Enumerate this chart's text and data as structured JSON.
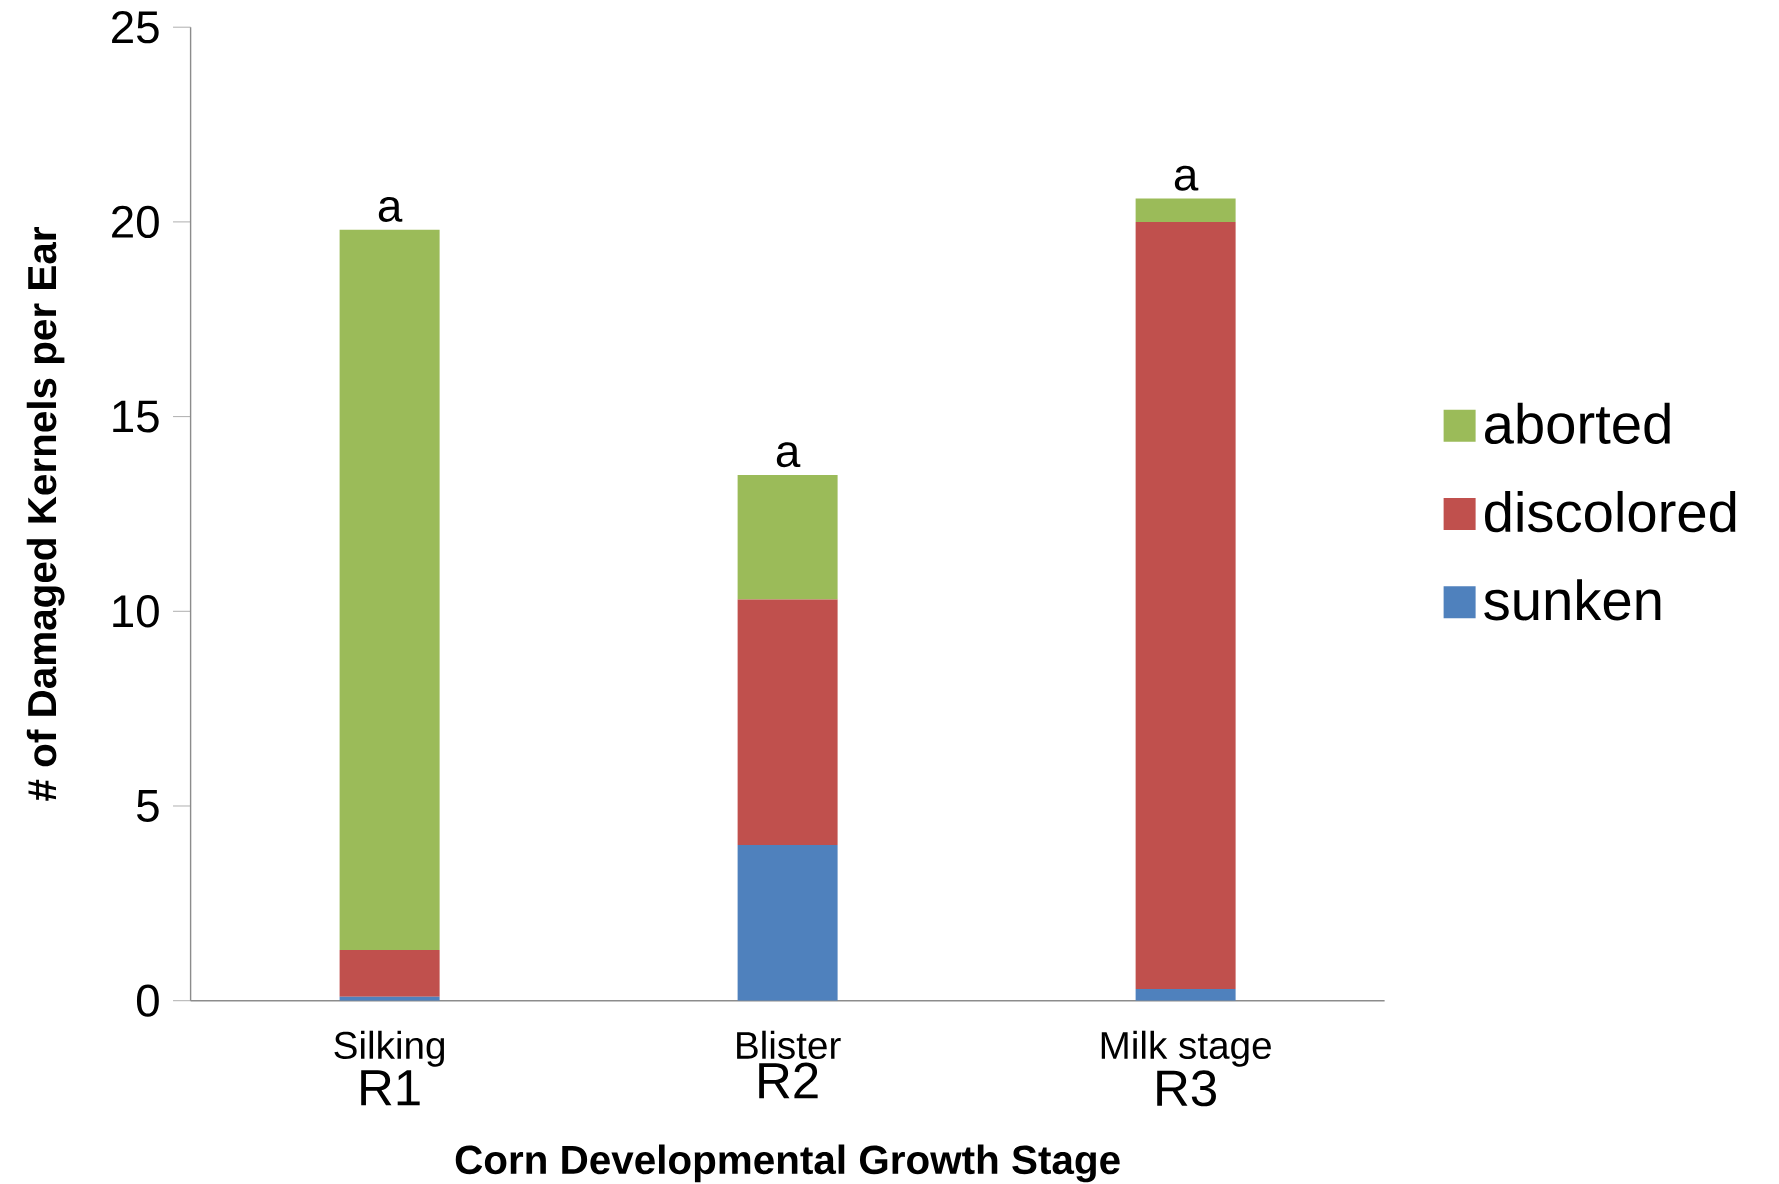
{
  "chart_data": {
    "type": "bar",
    "stacked": true,
    "xlabel": "Corn Developmental Growth Stage",
    "ylabel": "# of Damaged Kernels per Ear",
    "categories": [
      "Silking",
      "Blister",
      "Milk stage"
    ],
    "series": [
      {
        "name": "sunken",
        "color": "#4f81bd",
        "values": [
          0.1,
          4.0,
          0.3
        ]
      },
      {
        "name": "discolored",
        "color": "#c0504d",
        "values": [
          1.2,
          6.3,
          19.7
        ]
      },
      {
        "name": "aborted",
        "color": "#9bbb59",
        "values": [
          18.5,
          3.2,
          0.6
        ]
      }
    ],
    "ylim": [
      0,
      25
    ],
    "yticks": [
      0,
      5,
      10,
      15,
      20,
      25
    ],
    "legend": "right",
    "annotations": [
      {
        "text": "a",
        "x": "Silking",
        "y": 19.8
      },
      {
        "text": "a",
        "x": "Blister",
        "y": 13.5
      },
      {
        "text": "a",
        "x": "Milk stage",
        "y": 20.6
      },
      "R1",
      "R2",
      "R3"
    ]
  }
}
